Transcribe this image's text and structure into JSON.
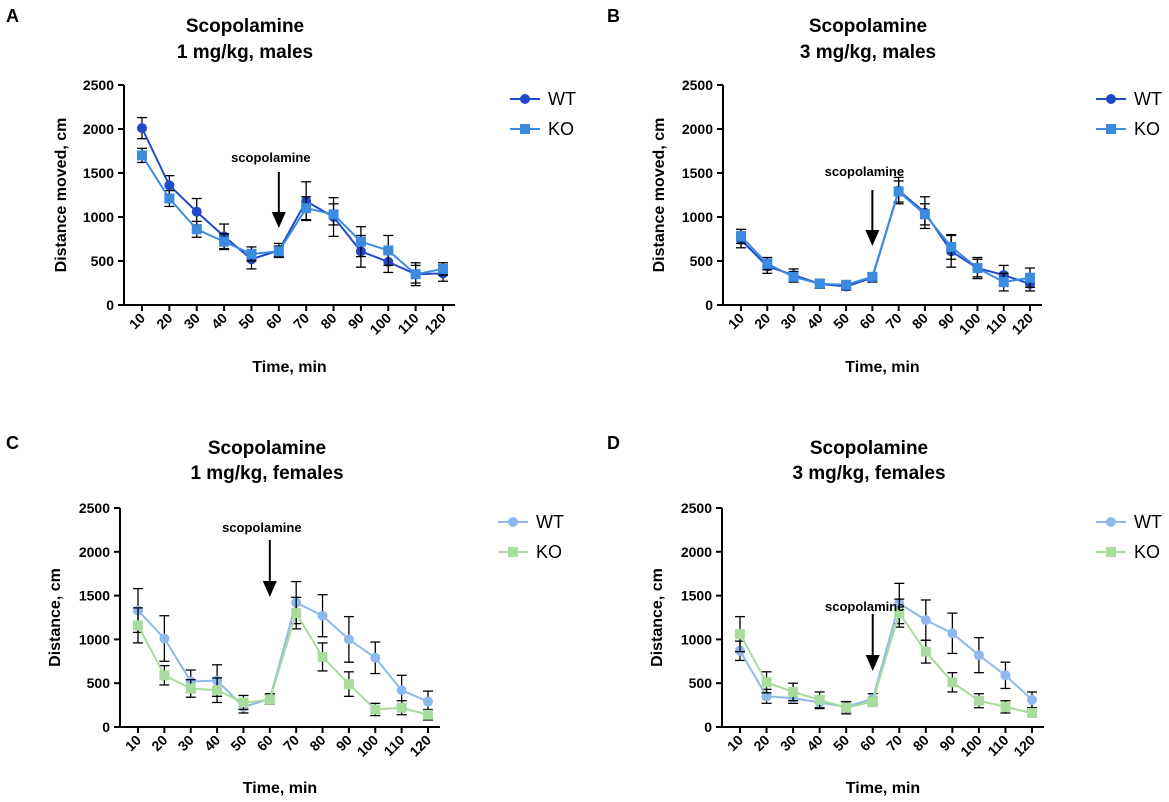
{
  "chart_data": [
    {
      "type": "line",
      "panel_letter": "A",
      "title": [
        "Scopolamine",
        "1 mg/kg, males"
      ],
      "xlabel": "Time, min",
      "ylabel": "Distance moved, cm",
      "ylim": [
        0,
        2500
      ],
      "yticks": [
        0,
        500,
        1000,
        1500,
        2000,
        2500
      ],
      "categories": [
        "10",
        "20",
        "30",
        "40",
        "50",
        "60",
        "70",
        "80",
        "90",
        "100",
        "110",
        "120"
      ],
      "annotation": {
        "text": "scopolamine",
        "at_category": "60"
      },
      "legend": "top-right",
      "series": [
        {
          "name": "WT",
          "marker": "circle",
          "color": "#1f49c8",
          "values": [
            2010,
            1360,
            1060,
            780,
            520,
            620,
            1180,
            1000,
            610,
            490,
            350,
            360
          ],
          "errors": [
            120,
            110,
            150,
            140,
            110,
            80,
            220,
            220,
            180,
            120,
            130,
            90
          ]
        },
        {
          "name": "KO",
          "marker": "square",
          "color": "#3b8be0",
          "values": [
            1700,
            1210,
            860,
            720,
            580,
            610,
            1100,
            1030,
            720,
            620,
            350,
            410
          ],
          "errors": [
            80,
            90,
            90,
            90,
            80,
            60,
            130,
            120,
            170,
            170,
            100,
            70
          ]
        }
      ]
    },
    {
      "type": "line",
      "panel_letter": "B",
      "title": [
        "Scopolamine",
        "3 mg/kg, males"
      ],
      "xlabel": "Time, min",
      "ylabel": "Distance moved, cm",
      "ylim": [
        0,
        2500
      ],
      "yticks": [
        0,
        500,
        1000,
        1500,
        2000,
        2500
      ],
      "categories": [
        "10",
        "20",
        "30",
        "40",
        "50",
        "60",
        "70",
        "80",
        "90",
        "100",
        "110",
        "120"
      ],
      "annotation": {
        "text": "scopolamine",
        "at_category": "60"
      },
      "legend": "top-right",
      "series": [
        {
          "name": "WT",
          "marker": "circle",
          "color": "#1f49c8",
          "values": [
            740,
            440,
            340,
            240,
            210,
            310,
            1300,
            1050,
            610,
            420,
            340,
            240
          ],
          "errors": [
            90,
            80,
            70,
            50,
            40,
            50,
            150,
            180,
            180,
            100,
            110,
            80
          ]
        },
        {
          "name": "KO",
          "marker": "square",
          "color": "#3b8be0",
          "values": [
            780,
            470,
            320,
            240,
            230,
            320,
            1290,
            1030,
            660,
            420,
            260,
            310
          ],
          "errors": [
            80,
            70,
            60,
            50,
            40,
            40,
            120,
            120,
            140,
            120,
            100,
            110
          ]
        }
      ]
    },
    {
      "type": "line",
      "panel_letter": "C",
      "title": [
        "Scopolamine",
        "1 mg/kg, females"
      ],
      "xlabel": "Time, min",
      "ylabel": "Distance, cm",
      "ylim": [
        0,
        2500
      ],
      "yticks": [
        0,
        500,
        1000,
        1500,
        2000,
        2500
      ],
      "categories": [
        "10",
        "20",
        "30",
        "40",
        "50",
        "60",
        "70",
        "80",
        "90",
        "100",
        "110",
        "120"
      ],
      "annotation": {
        "text": "scopolamine",
        "at_category": "60"
      },
      "legend": "top-right",
      "series": [
        {
          "name": "WT",
          "marker": "circle",
          "color": "#8db9ec",
          "values": [
            1330,
            1010,
            520,
            530,
            230,
            320,
            1420,
            1270,
            1000,
            790,
            420,
            290
          ],
          "errors": [
            250,
            260,
            130,
            180,
            70,
            60,
            240,
            240,
            260,
            180,
            170,
            120
          ]
        },
        {
          "name": "KO",
          "marker": "square",
          "color": "#a8dc9c",
          "values": [
            1160,
            590,
            440,
            420,
            280,
            310,
            1300,
            800,
            490,
            200,
            220,
            140
          ],
          "errors": [
            200,
            110,
            100,
            140,
            80,
            50,
            180,
            160,
            140,
            70,
            80,
            60
          ]
        }
      ]
    },
    {
      "type": "line",
      "panel_letter": "D",
      "title": [
        "Scopolamine",
        "3 mg/kg, females"
      ],
      "xlabel": "Time, min",
      "ylabel": "Distance, cm",
      "ylim": [
        0,
        2500
      ],
      "yticks": [
        0,
        500,
        1000,
        1500,
        2000,
        2500
      ],
      "categories": [
        "10",
        "20",
        "30",
        "40",
        "50",
        "60",
        "70",
        "80",
        "90",
        "100",
        "110",
        "120"
      ],
      "annotation": {
        "text": "scopolamine",
        "at_category": "60"
      },
      "legend": "top-right",
      "series": [
        {
          "name": "WT",
          "marker": "circle",
          "color": "#8db9ec",
          "values": [
            870,
            350,
            330,
            280,
            230,
            320,
            1410,
            1220,
            1070,
            820,
            590,
            310
          ],
          "errors": [
            110,
            80,
            60,
            70,
            60,
            60,
            230,
            230,
            230,
            200,
            150,
            90
          ]
        },
        {
          "name": "KO",
          "marker": "square",
          "color": "#a8dc9c",
          "values": [
            1060,
            510,
            400,
            310,
            220,
            290,
            1300,
            860,
            510,
            300,
            230,
            160
          ],
          "errors": [
            200,
            120,
            100,
            90,
            70,
            50,
            160,
            130,
            110,
            80,
            70,
            50
          ]
        }
      ]
    }
  ]
}
